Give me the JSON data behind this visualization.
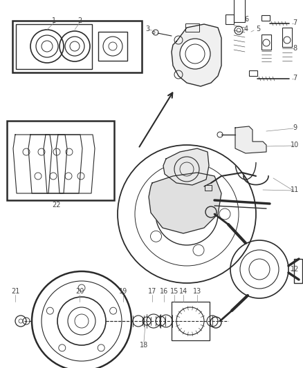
{
  "background_color": "#ffffff",
  "fig_width": 4.39,
  "fig_height": 5.33,
  "dpi": 100,
  "lc": "#2a2a2a",
  "gray": "#888888",
  "light_gray": "#cccccc",
  "label_fs": 7,
  "label_color": "#444444"
}
